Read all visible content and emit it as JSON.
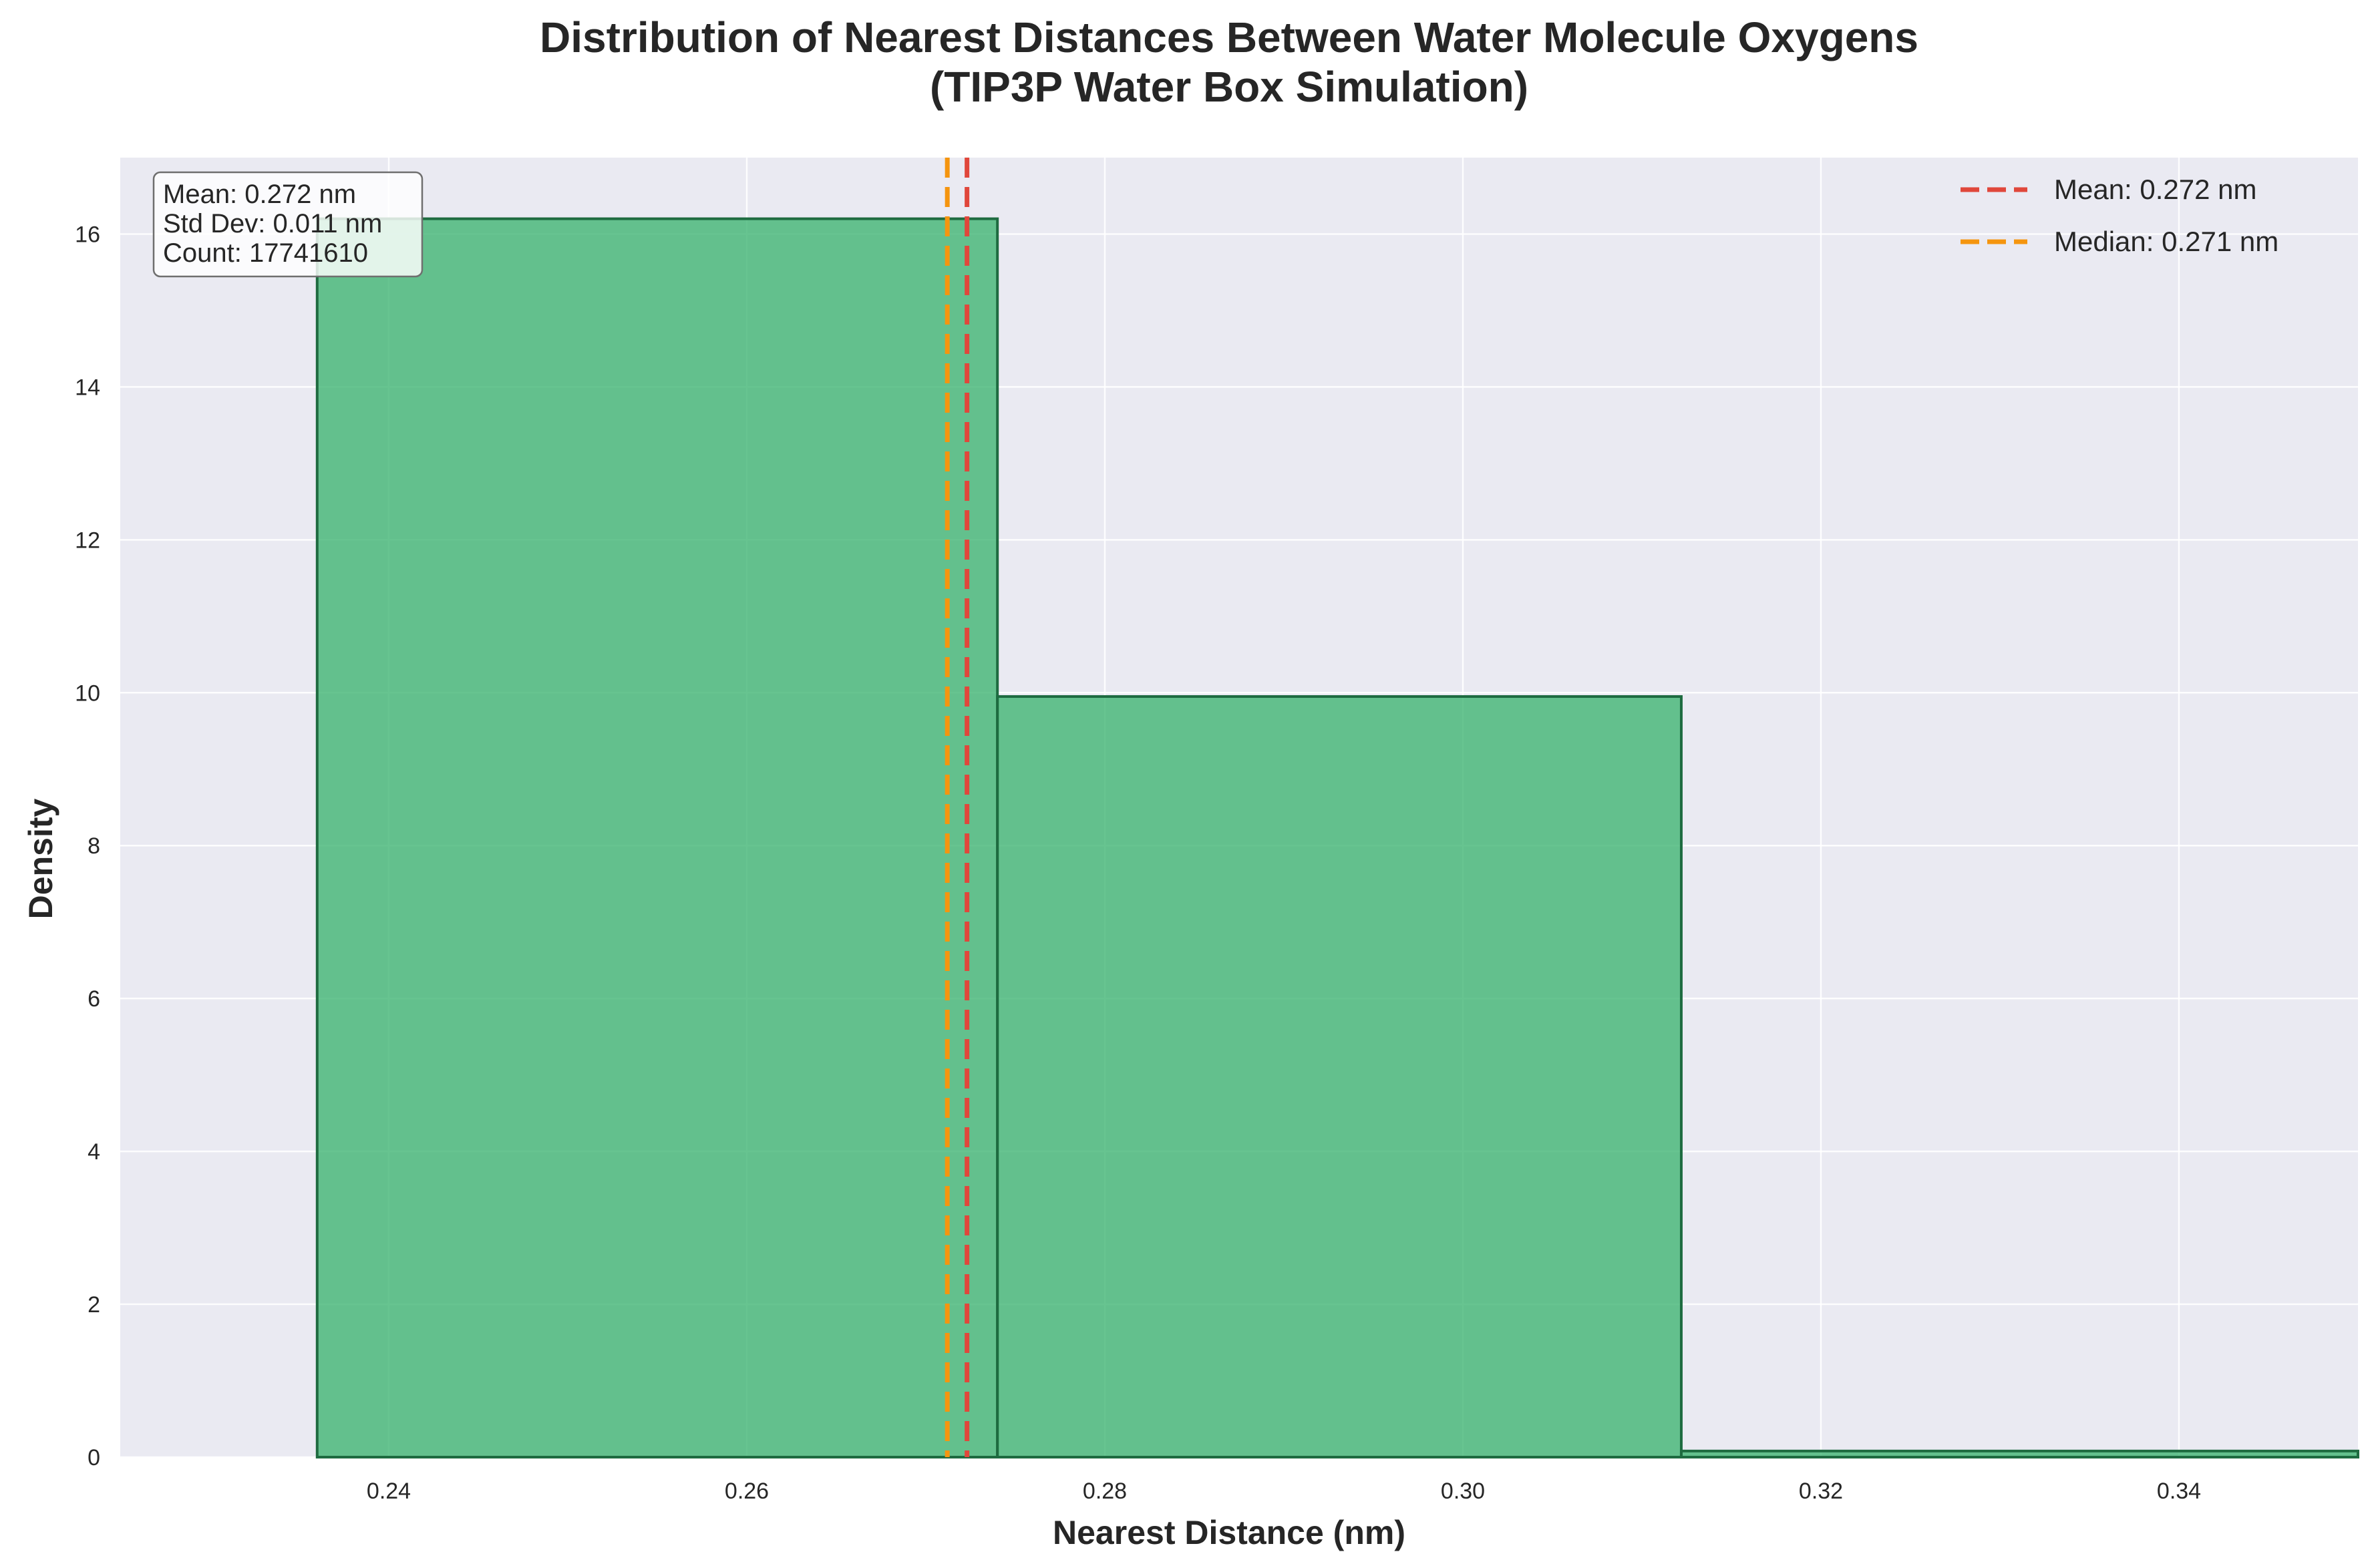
{
  "chart_data": {
    "type": "bar",
    "title_lines": [
      "Distribution of Nearest Distances Between Water Molecule Oxygens",
      "(TIP3P Water Box Simulation)"
    ],
    "xlabel": "Nearest Distance (nm)",
    "ylabel": "Density",
    "xlim": [
      0.225,
      0.35
    ],
    "ylim": [
      0,
      17
    ],
    "grid": true,
    "x_ticks": [
      "0.24",
      "0.26",
      "0.28",
      "0.30",
      "0.32",
      "0.34"
    ],
    "y_ticks": [
      "0",
      "2",
      "4",
      "6",
      "8",
      "10",
      "12",
      "14",
      "16"
    ],
    "bins": [
      {
        "x0": 0.236,
        "x1": 0.274,
        "value": 16.2
      },
      {
        "x0": 0.274,
        "x1": 0.3122,
        "value": 9.95
      },
      {
        "x0": 0.3122,
        "x1": 0.35,
        "value": 0.08
      }
    ],
    "bar_color": "#3cb371",
    "bar_edge_color": "#1e6b40",
    "reference_lines": [
      {
        "name": "Mean: 0.272 nm",
        "x": 0.2723,
        "color": "#e0473b"
      },
      {
        "name": "Median: 0.271 nm",
        "x": 0.2712,
        "color": "#f5950f"
      }
    ],
    "legend_position": "top-right",
    "stats_box": {
      "position": "top-left",
      "lines": [
        "Mean: 0.272 nm",
        "Std Dev: 0.011 nm",
        "Count: 17741610"
      ]
    },
    "background_color": "#eaeaf2"
  }
}
